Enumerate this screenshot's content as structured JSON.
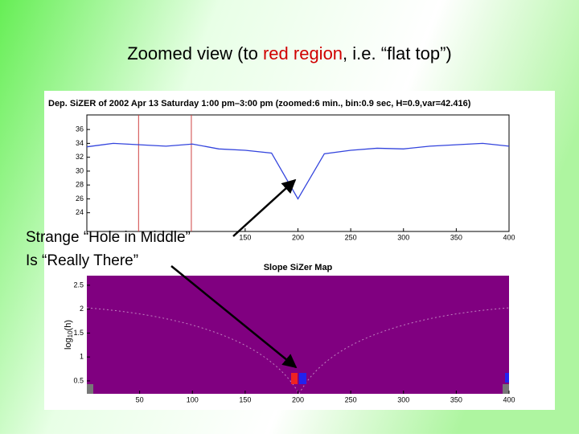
{
  "slide": {
    "title_before": "Zoomed view (to ",
    "title_red": "red region",
    "title_after": ", i.e. “flat top”)",
    "annotation": [
      "Strange “Hole in Middle”",
      "Is “Really There”"
    ]
  },
  "chart_data": [
    {
      "type": "line",
      "title": "Dep. SiZER of 2002 Apr 13 Saturday 1:00 pm–3:00 pm (zoomed:6 min., bin:0.9 sec, H=0.9,var=42.416)",
      "x": [
        0,
        25,
        50,
        75,
        100,
        125,
        150,
        175,
        200,
        225,
        250,
        275,
        300,
        325,
        350,
        375,
        400
      ],
      "series": [
        {
          "color": "#3344dd",
          "values": [
            33.5,
            34,
            33.8,
            33.6,
            33.9,
            33.2,
            33,
            32.6,
            26,
            32.5,
            33,
            33.3,
            33.2,
            33.6,
            33.8,
            34,
            33.6
          ]
        }
      ],
      "region_lines": [
        49,
        99
      ],
      "region_color": "#d04040",
      "xlim": [
        0,
        400
      ],
      "xticks": [
        150,
        200,
        250,
        300,
        350,
        400
      ],
      "ylim": [
        21.3,
        38.1
      ],
      "yticks": [
        24,
        26,
        28,
        30,
        32,
        34,
        36
      ]
    },
    {
      "type": "heatmap",
      "title": "Slope SiZer Map",
      "ylabel": {
        "base": "log",
        "sub": "10",
        "rest": "(h)"
      },
      "color": "#800080",
      "xlim": [
        0,
        400
      ],
      "xticks": [
        50,
        100,
        150,
        200,
        250,
        300,
        350,
        400
      ],
      "ylim": [
        0.23,
        2.7
      ],
      "yticks": [
        0.5,
        1,
        1.5,
        2,
        2.5
      ]
    }
  ]
}
